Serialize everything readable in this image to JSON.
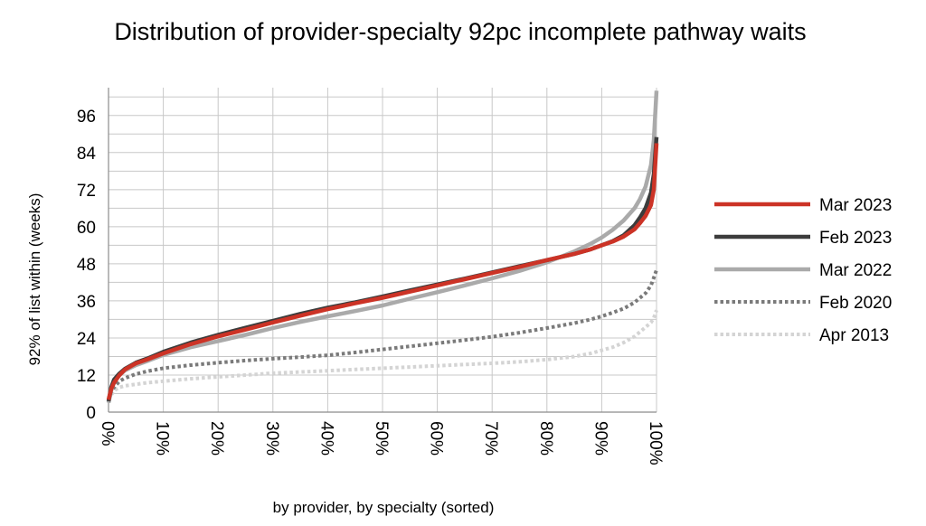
{
  "chart_data": {
    "type": "line",
    "title": "Distribution of provider-specialty 92pc incomplete pathway waits",
    "xlabel": "by provider, by specialty (sorted)",
    "ylabel": "92% of list within (weeks)",
    "xlim": [
      0,
      100
    ],
    "ylim": [
      0,
      105
    ],
    "yticks": [
      0,
      12,
      24,
      36,
      48,
      60,
      72,
      84,
      96
    ],
    "xticks": [
      0,
      10,
      20,
      30,
      40,
      50,
      60,
      70,
      80,
      90,
      100
    ],
    "xtick_labels": [
      "0%",
      "10%",
      "20%",
      "30%",
      "40%",
      "50%",
      "60%",
      "70%",
      "80%",
      "90%",
      "100%"
    ],
    "grid": true,
    "legend_position": "right",
    "series": [
      {
        "name": "Apr 2013",
        "color": "#d4d4d4",
        "style": "dotted",
        "x": [
          0,
          0.5,
          1,
          2,
          3,
          5,
          7,
          10,
          15,
          20,
          25,
          30,
          35,
          40,
          45,
          50,
          55,
          60,
          65,
          70,
          75,
          80,
          85,
          88,
          90,
          92,
          94,
          96,
          97,
          98,
          99,
          99.5,
          100
        ],
        "y": [
          4,
          5.5,
          7,
          8,
          8.5,
          9,
          9.5,
          10,
          10.8,
          11.4,
          12,
          12.6,
          13,
          13.4,
          13.8,
          14.2,
          14.6,
          15,
          15.4,
          15.8,
          16.3,
          17,
          18,
          19,
          20,
          21,
          22.5,
          24.5,
          26,
          27.5,
          29,
          30.5,
          33
        ]
      },
      {
        "name": "Feb 2020",
        "color": "#7a7a7a",
        "style": "dotted",
        "x": [
          0,
          0.5,
          1,
          2,
          3,
          5,
          7,
          10,
          15,
          20,
          25,
          30,
          35,
          40,
          45,
          50,
          55,
          60,
          65,
          70,
          75,
          80,
          85,
          88,
          90,
          92,
          94,
          96,
          97,
          98,
          99,
          99.5,
          100
        ],
        "y": [
          4,
          6.5,
          8,
          10,
          11,
          12.3,
          13.2,
          14.2,
          15.2,
          16,
          16.7,
          17.3,
          17.8,
          18.4,
          19.3,
          20.3,
          21.3,
          22.3,
          23.3,
          24.4,
          25.7,
          27.2,
          28.8,
          30,
          31,
          32.2,
          33.5,
          35.5,
          37,
          38.5,
          41,
          43.5,
          46
        ]
      },
      {
        "name": "Mar 2022",
        "color": "#aaaaaa",
        "style": "solid",
        "x": [
          0,
          0.5,
          1,
          2,
          3,
          5,
          7,
          10,
          15,
          20,
          25,
          30,
          35,
          40,
          45,
          50,
          55,
          60,
          65,
          70,
          75,
          80,
          85,
          88,
          90,
          92,
          94,
          96,
          97,
          98,
          99,
          99.5,
          100
        ],
        "y": [
          3,
          7,
          10,
          12,
          13.5,
          15.2,
          16.5,
          18.5,
          21,
          23,
          25,
          27.2,
          29.2,
          31,
          32.7,
          34.5,
          36.7,
          38.8,
          41,
          43.3,
          45.7,
          48.5,
          52,
          54.5,
          56.5,
          59,
          62,
          66,
          69,
          73,
          80,
          88,
          104
        ]
      },
      {
        "name": "Feb 2023",
        "color": "#3c3c3c",
        "style": "solid",
        "x": [
          0,
          0.5,
          1,
          2,
          3,
          5,
          7,
          10,
          15,
          20,
          25,
          30,
          35,
          40,
          45,
          50,
          55,
          60,
          65,
          70,
          75,
          80,
          85,
          88,
          90,
          92,
          94,
          96,
          97,
          98,
          99,
          99.5,
          100
        ],
        "y": [
          3.5,
          8,
          10.5,
          12.5,
          14,
          16,
          17.3,
          19.5,
          22.5,
          25,
          27.3,
          29.5,
          31.8,
          33.8,
          35.5,
          37.4,
          39.4,
          41.3,
          43.2,
          45.2,
          47.2,
          49.2,
          51.2,
          52.7,
          54,
          55.3,
          57.2,
          60.5,
          63,
          66,
          71,
          77,
          89
        ]
      },
      {
        "name": "Mar 2023",
        "color": "#cc3326",
        "style": "solid",
        "x": [
          0,
          0.5,
          1,
          2,
          3,
          5,
          7,
          10,
          15,
          20,
          25,
          30,
          35,
          40,
          45,
          50,
          55,
          60,
          65,
          70,
          75,
          80,
          85,
          88,
          90,
          92,
          94,
          96,
          97,
          98,
          99,
          99.5,
          100
        ],
        "y": [
          4,
          7.5,
          9.5,
          12,
          13.8,
          15.8,
          17,
          19,
          22,
          24.5,
          26.7,
          29,
          31.2,
          33.3,
          35.2,
          37,
          39,
          41,
          43,
          45,
          47,
          49.2,
          51.2,
          52.7,
          54,
          55.2,
          56.8,
          59.2,
          61.2,
          63.5,
          67,
          72,
          87
        ]
      }
    ],
    "legend": [
      "Mar 2023",
      "Feb 2023",
      "Mar 2022",
      "Feb 2020",
      "Apr 2013"
    ]
  }
}
